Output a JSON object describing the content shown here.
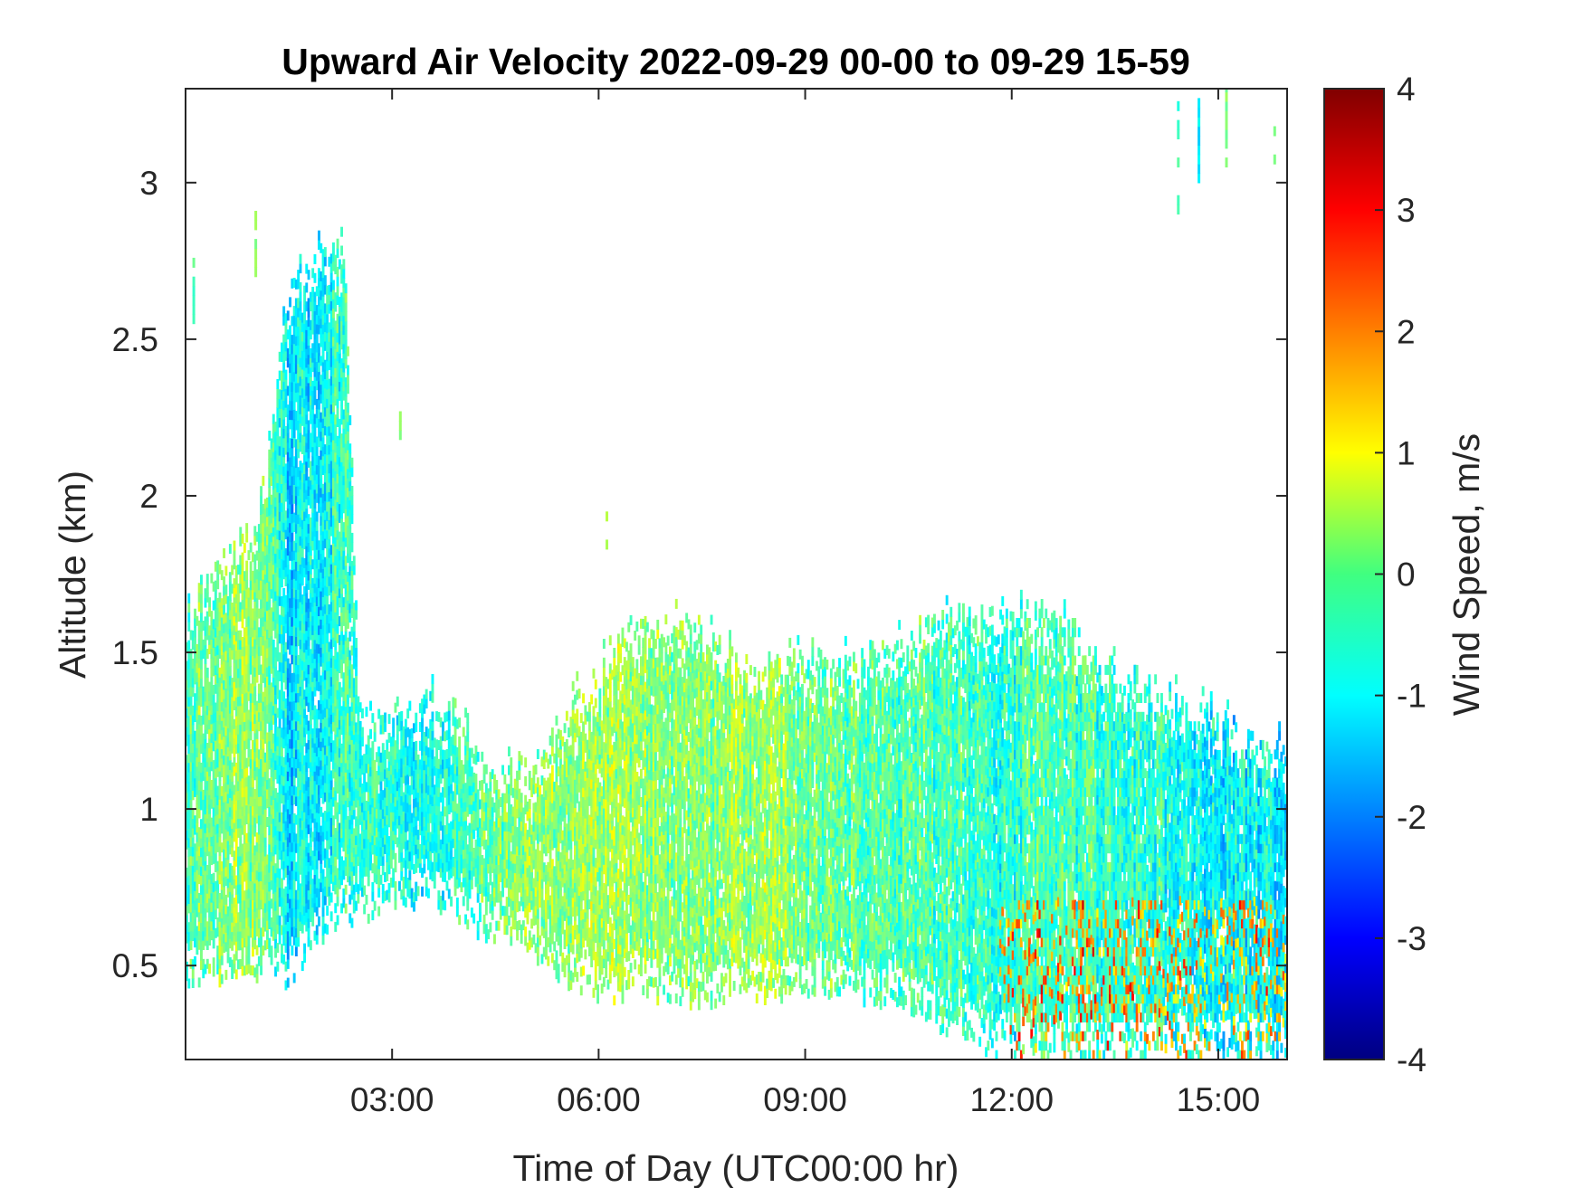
{
  "chart_data": {
    "type": "heatmap",
    "title": "Upward Air Velocity 2022-09-29 00-00 to 09-29 15-59",
    "xlabel": "Time of Day (UTC00:00 hr)",
    "ylabel": "Altitude (km)",
    "colorbar_label": "Wind Speed, m/s",
    "x_unit": "hours UTC",
    "xlim": [
      0,
      16
    ],
    "ylim": [
      0.2,
      3.3
    ],
    "clim": [
      -4,
      4
    ],
    "colormap": "jet",
    "grid": false,
    "x_ticks": [
      {
        "value": 3,
        "label": "03:00"
      },
      {
        "value": 6,
        "label": "06:00"
      },
      {
        "value": 9,
        "label": "09:00"
      },
      {
        "value": 12,
        "label": "12:00"
      },
      {
        "value": 15,
        "label": "15:00"
      }
    ],
    "y_ticks": [
      {
        "value": 0.5,
        "label": "0.5"
      },
      {
        "value": 1,
        "label": "1"
      },
      {
        "value": 1.5,
        "label": "1.5"
      },
      {
        "value": 2,
        "label": "2"
      },
      {
        "value": 2.5,
        "label": "2.5"
      },
      {
        "value": 3,
        "label": "3"
      }
    ],
    "colorbar_ticks": [
      {
        "value": -4,
        "label": "-4"
      },
      {
        "value": -3,
        "label": "-3"
      },
      {
        "value": -2,
        "label": "-2"
      },
      {
        "value": -1,
        "label": "-1"
      },
      {
        "value": 0,
        "label": "0"
      },
      {
        "value": 1,
        "label": "1"
      },
      {
        "value": 2,
        "label": "2"
      },
      {
        "value": 3,
        "label": "3"
      },
      {
        "value": 4,
        "label": "4"
      }
    ],
    "coverage_profile": {
      "time": [
        0,
        0.5,
        1.0,
        1.5,
        2.0,
        2.3,
        2.5,
        3.0,
        3.5,
        4.0,
        4.3,
        5.0,
        5.5,
        6.0,
        6.7,
        7.5,
        8.3,
        9.0,
        9.8,
        10.5,
        11.0,
        11.5,
        12.0,
        12.3,
        12.8,
        13.3,
        14.0,
        14.5,
        15.0,
        15.6,
        16.0
      ],
      "cloud_top": [
        1.6,
        1.8,
        1.85,
        2.7,
        2.8,
        2.8,
        1.3,
        1.3,
        1.35,
        1.3,
        1.15,
        1.1,
        1.3,
        1.45,
        1.62,
        1.58,
        1.48,
        1.47,
        1.47,
        1.55,
        1.62,
        1.6,
        1.62,
        1.62,
        1.6,
        1.45,
        1.4,
        1.35,
        1.3,
        1.2,
        1.2
      ],
      "cloud_base": [
        0.45,
        0.45,
        0.45,
        0.45,
        0.6,
        0.65,
        0.65,
        0.7,
        0.7,
        0.65,
        0.6,
        0.55,
        0.45,
        0.4,
        0.4,
        0.38,
        0.4,
        0.4,
        0.4,
        0.35,
        0.3,
        0.25,
        0.2,
        0.2,
        0.2,
        0.2,
        0.2,
        0.2,
        0.2,
        0.2,
        0.2
      ],
      "mean_velocity": [
        -0.3,
        0.0,
        0.2,
        -1.2,
        -1.0,
        -0.6,
        -0.7,
        -0.8,
        -0.8,
        -0.6,
        -0.3,
        0.1,
        0.3,
        0.2,
        0.1,
        0.1,
        0.2,
        -0.1,
        -0.2,
        -0.3,
        -0.4,
        -0.5,
        -0.8,
        -0.3,
        -0.5,
        -0.6,
        -0.7,
        -0.8,
        -1.0,
        -1.1,
        -1.2
      ]
    },
    "isolated_echoes": [
      {
        "time": 14.4,
        "alt_min": 2.9,
        "alt_max": 3.28,
        "value": -0.5
      },
      {
        "time": 14.7,
        "alt_min": 3.0,
        "alt_max": 3.25,
        "value": -1.2
      },
      {
        "time": 15.1,
        "alt_min": 3.05,
        "alt_max": 3.3,
        "value": 0.1
      },
      {
        "time": 15.8,
        "alt_min": 3.0,
        "alt_max": 3.17,
        "value": 0.2
      },
      {
        "time": 0.1,
        "alt_min": 2.55,
        "alt_max": 2.78,
        "value": -0.4
      },
      {
        "time": 1.0,
        "alt_min": 2.7,
        "alt_max": 2.88,
        "value": 0.1
      },
      {
        "time": 3.1,
        "alt_min": 2.15,
        "alt_max": 2.25,
        "value": 0.1
      },
      {
        "time": 6.1,
        "alt_min": 1.8,
        "alt_max": 1.93,
        "value": 0.3
      }
    ]
  }
}
